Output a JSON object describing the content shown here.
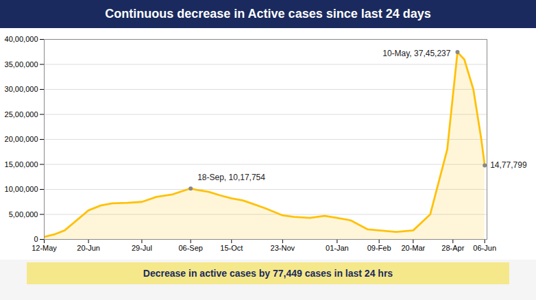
{
  "chart_data": {
    "type": "area",
    "title": "Continuous decrease in Active cases since last 24 days",
    "caption": "Decrease in active cases by 77,449 cases in last 24 hrs",
    "color": "#FFC107",
    "x": [
      0,
      9,
      18,
      27,
      39,
      50,
      60,
      73,
      86,
      99,
      113,
      125,
      129,
      134,
      145,
      155,
      165,
      175,
      185,
      195,
      210,
      220,
      234,
      247,
      258,
      270,
      285,
      295,
      310,
      325,
      340,
      355,
      364,
      370,
      378,
      385,
      388
    ],
    "values": [
      50000,
      100000,
      180000,
      350000,
      580000,
      680000,
      720000,
      730000,
      750000,
      850000,
      900000,
      990000,
      1017754,
      990000,
      950000,
      880000,
      820000,
      780000,
      700000,
      620000,
      480000,
      450000,
      430000,
      470000,
      430000,
      380000,
      200000,
      180000,
      150000,
      180000,
      500000,
      1800000,
      3745237,
      3600000,
      3000000,
      2000000,
      1477799
    ],
    "xlim": [
      0,
      390
    ],
    "xticks": [
      {
        "value": 0,
        "label": "12-May"
      },
      {
        "value": 39,
        "label": "20-Jun"
      },
      {
        "value": 86,
        "label": "29-Jul"
      },
      {
        "value": 129,
        "label": "06-Sep"
      },
      {
        "value": 165,
        "label": "15-Oct"
      },
      {
        "value": 210,
        "label": "23-Nov"
      },
      {
        "value": 258,
        "label": "01-Jan"
      },
      {
        "value": 295,
        "label": "09-Feb"
      },
      {
        "value": 325,
        "label": "20-Mar"
      },
      {
        "value": 360,
        "label": "28-Apr"
      },
      {
        "value": 388,
        "label": "06-Jun"
      }
    ],
    "ylim": [
      0,
      4000000
    ],
    "yticks": [
      0,
      {
        "value": 500000,
        "label": "5,00,000"
      },
      {
        "value": 1000000,
        "label": "10,00,000"
      },
      {
        "value": 1500000,
        "label": "15,00,000"
      },
      {
        "value": 2000000,
        "label": "20,00,000"
      },
      {
        "value": 2500000,
        "label": "25,00,000"
      },
      {
        "value": 3000000,
        "label": "30,00,000"
      },
      {
        "value": 3500000,
        "label": "35,00,000"
      },
      {
        "value": 4000000,
        "label": "40,00,000"
      }
    ],
    "grid": true,
    "annotations": [
      {
        "text": "18-Sep, 10,17,754",
        "x": 129,
        "y": 1017754
      },
      {
        "text": "10-May, 37,45,237",
        "x": 364,
        "y": 3745237
      },
      {
        "text": "14,77,799",
        "x": 388,
        "y": 1477799
      }
    ]
  }
}
